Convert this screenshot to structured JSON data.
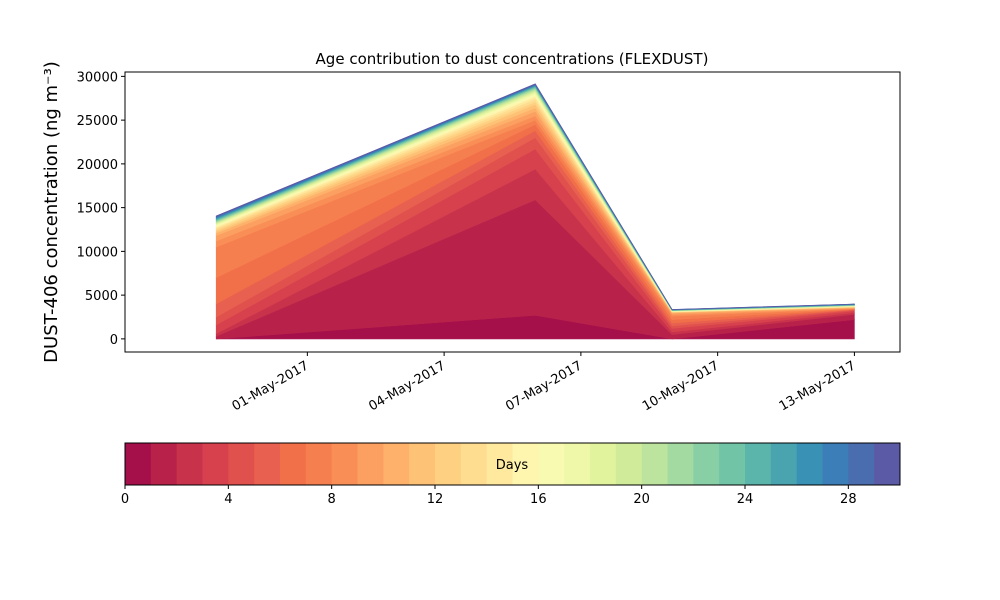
{
  "chart_data": {
    "type": "area",
    "title": "Age contribution to dust concentrations (FLEXDUST)",
    "ylabel": "DUST-406 concentration (ng m⁻³)",
    "xlabel": "",
    "ylim": [
      -1500,
      30500
    ],
    "yticks": [
      0,
      5000,
      10000,
      15000,
      20000,
      25000,
      30000
    ],
    "x_dates": [
      "2017-04-29",
      "2017-05-06",
      "2017-05-09",
      "2017-05-13"
    ],
    "xlim": [
      "2017-04-27",
      "2017-05-14"
    ],
    "xtick_labels": [
      "01-May-2017",
      "04-May-2017",
      "07-May-2017",
      "10-May-2017",
      "13-May-2017"
    ],
    "xtick_dates": [
      "2017-05-01",
      "2017-05-04",
      "2017-05-07",
      "2017-05-10",
      "2017-05-13"
    ],
    "stacked_bands_note": "",
    "cumulative_age_bins": [
      {
        "age_days": 1,
        "values": [
          0,
          2700,
          0,
          2200
        ]
      },
      {
        "age_days": 2,
        "values": [
          300,
          15900,
          500,
          2800
        ]
      },
      {
        "age_days": 3,
        "values": [
          600,
          19400,
          800,
          3000
        ]
      },
      {
        "age_days": 4,
        "values": [
          1600,
          21700,
          1200,
          3200
        ]
      },
      {
        "age_days": 5,
        "values": [
          2500,
          23000,
          1500,
          3300
        ]
      },
      {
        "age_days": 6,
        "values": [
          4000,
          23800,
          1800,
          3350
        ]
      },
      {
        "age_days": 7,
        "values": [
          7000,
          24500,
          2200,
          3400
        ]
      },
      {
        "age_days": 8,
        "values": [
          10500,
          25000,
          2600,
          3450
        ]
      },
      {
        "age_days": 9,
        "values": [
          11200,
          25500,
          2800,
          3500
        ]
      },
      {
        "age_days": 10,
        "values": [
          11800,
          26000,
          2950,
          3550
        ]
      },
      {
        "age_days": 11,
        "values": [
          12100,
          26400,
          3000,
          3600
        ]
      },
      {
        "age_days": 12,
        "values": [
          12300,
          26800,
          3050,
          3620
        ]
      },
      {
        "age_days": 13,
        "values": [
          12500,
          27100,
          3080,
          3650
        ]
      },
      {
        "age_days": 14,
        "values": [
          12650,
          27400,
          3100,
          3680
        ]
      },
      {
        "age_days": 15,
        "values": [
          12800,
          27650,
          3120,
          3700
        ]
      },
      {
        "age_days": 16,
        "values": [
          12900,
          27850,
          3140,
          3720
        ]
      },
      {
        "age_days": 17,
        "values": [
          13000,
          28000,
          3160,
          3740
        ]
      },
      {
        "age_days": 18,
        "values": [
          13100,
          28150,
          3180,
          3760
        ]
      },
      {
        "age_days": 19,
        "values": [
          13200,
          28300,
          3200,
          3780
        ]
      },
      {
        "age_days": 20,
        "values": [
          13280,
          28420,
          3215,
          3800
        ]
      },
      {
        "age_days": 21,
        "values": [
          13360,
          28530,
          3230,
          3820
        ]
      },
      {
        "age_days": 22,
        "values": [
          13440,
          28630,
          3245,
          3840
        ]
      },
      {
        "age_days": 23,
        "values": [
          13520,
          28720,
          3260,
          3860
        ]
      },
      {
        "age_days": 24,
        "values": [
          13600,
          28800,
          3275,
          3880
        ]
      },
      {
        "age_days": 25,
        "values": [
          13680,
          28870,
          3290,
          3900
        ]
      },
      {
        "age_days": 26,
        "values": [
          13760,
          28930,
          3305,
          3920
        ]
      },
      {
        "age_days": 27,
        "values": [
          13840,
          28990,
          3320,
          3940
        ]
      },
      {
        "age_days": 28,
        "values": [
          13920,
          29050,
          3335,
          3960
        ]
      },
      {
        "age_days": 29,
        "values": [
          13990,
          29100,
          3350,
          3975
        ]
      },
      {
        "age_days": 30,
        "values": [
          14050,
          29150,
          3365,
          3990
        ]
      }
    ],
    "colorbar": {
      "label": "Days",
      "range": [
        0,
        30
      ],
      "ticks": [
        0,
        4,
        8,
        12,
        16,
        20,
        24,
        28
      ],
      "colors": [
        "#a50f4a",
        "#b8224a",
        "#c8324b",
        "#d6414d",
        "#e0514d",
        "#e8604f",
        "#f16f49",
        "#f67f4f",
        "#f98f57",
        "#fba060",
        "#fdb16b",
        "#fdc276",
        "#fed082",
        "#fedd90",
        "#fee99e",
        "#fef5ae",
        "#f8fab2",
        "#eff8a8",
        "#e2f39d",
        "#d0ec9b",
        "#bce49e",
        "#a3daa2",
        "#89cfa5",
        "#71c4a6",
        "#5bb5aa",
        "#49a4b0",
        "#3a91b6",
        "#3c7eb7",
        "#4a6db0",
        "#5b5aa6"
      ]
    }
  }
}
